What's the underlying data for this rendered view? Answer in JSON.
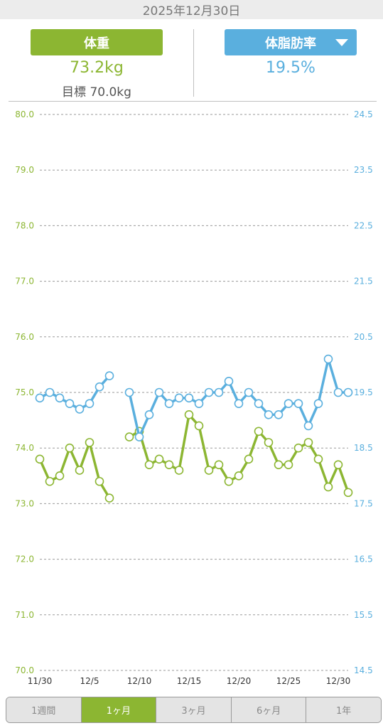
{
  "date": "2025年12月30日",
  "summary": {
    "weight_label": "体重",
    "weight_value": "73.2kg",
    "goal": "目標 70.0kg",
    "fat_label": "体脂肪率",
    "fat_value": "19.5%"
  },
  "range_tabs": [
    "1週間",
    "1ヶ月",
    "3ヶ月",
    "6ヶ月",
    "1年"
  ],
  "active_tab_index": 1,
  "colors": {
    "weight": "#8cb632",
    "fat": "#5aafde",
    "grid": "#9a9a9a"
  },
  "chart_data": {
    "type": "line",
    "x_tick_labels": [
      "11/30",
      "12/5",
      "12/10",
      "12/15",
      "12/20",
      "12/25",
      "12/30"
    ],
    "left_axis": {
      "ticks": [
        "80.0",
        "79.0",
        "78.0",
        "77.0",
        "76.0",
        "75.0",
        "74.0",
        "73.0",
        "72.0",
        "71.0",
        "70.0"
      ],
      "ylim": [
        70,
        80
      ]
    },
    "right_axis": {
      "ticks": [
        "24.5",
        "23.5",
        "22.5",
        "21.5",
        "20.5",
        "19.5",
        "18.5",
        "17.5",
        "16.5",
        "15.5",
        "14.5"
      ],
      "ylim": [
        14.5,
        24.5
      ]
    },
    "grid": true,
    "series": [
      {
        "key": "weight",
        "axis": "left",
        "values": [
          73.8,
          73.4,
          73.5,
          74.0,
          73.6,
          74.1,
          73.4,
          73.1,
          null,
          74.2,
          74.3,
          73.7,
          73.8,
          73.7,
          73.6,
          74.6,
          74.4,
          73.6,
          73.7,
          73.4,
          73.5,
          73.8,
          74.3,
          74.1,
          73.7,
          73.7,
          74.0,
          74.1,
          73.8,
          73.3,
          73.7,
          73.2
        ]
      },
      {
        "key": "fat",
        "axis": "right",
        "values": [
          19.4,
          19.5,
          19.4,
          19.3,
          19.2,
          19.3,
          19.6,
          19.8,
          null,
          19.5,
          18.7,
          19.1,
          19.5,
          19.3,
          19.4,
          19.4,
          19.3,
          19.5,
          19.5,
          19.7,
          19.3,
          19.5,
          19.3,
          19.1,
          19.1,
          19.3,
          19.3,
          18.9,
          19.3,
          20.1,
          19.5,
          19.5
        ]
      }
    ]
  }
}
